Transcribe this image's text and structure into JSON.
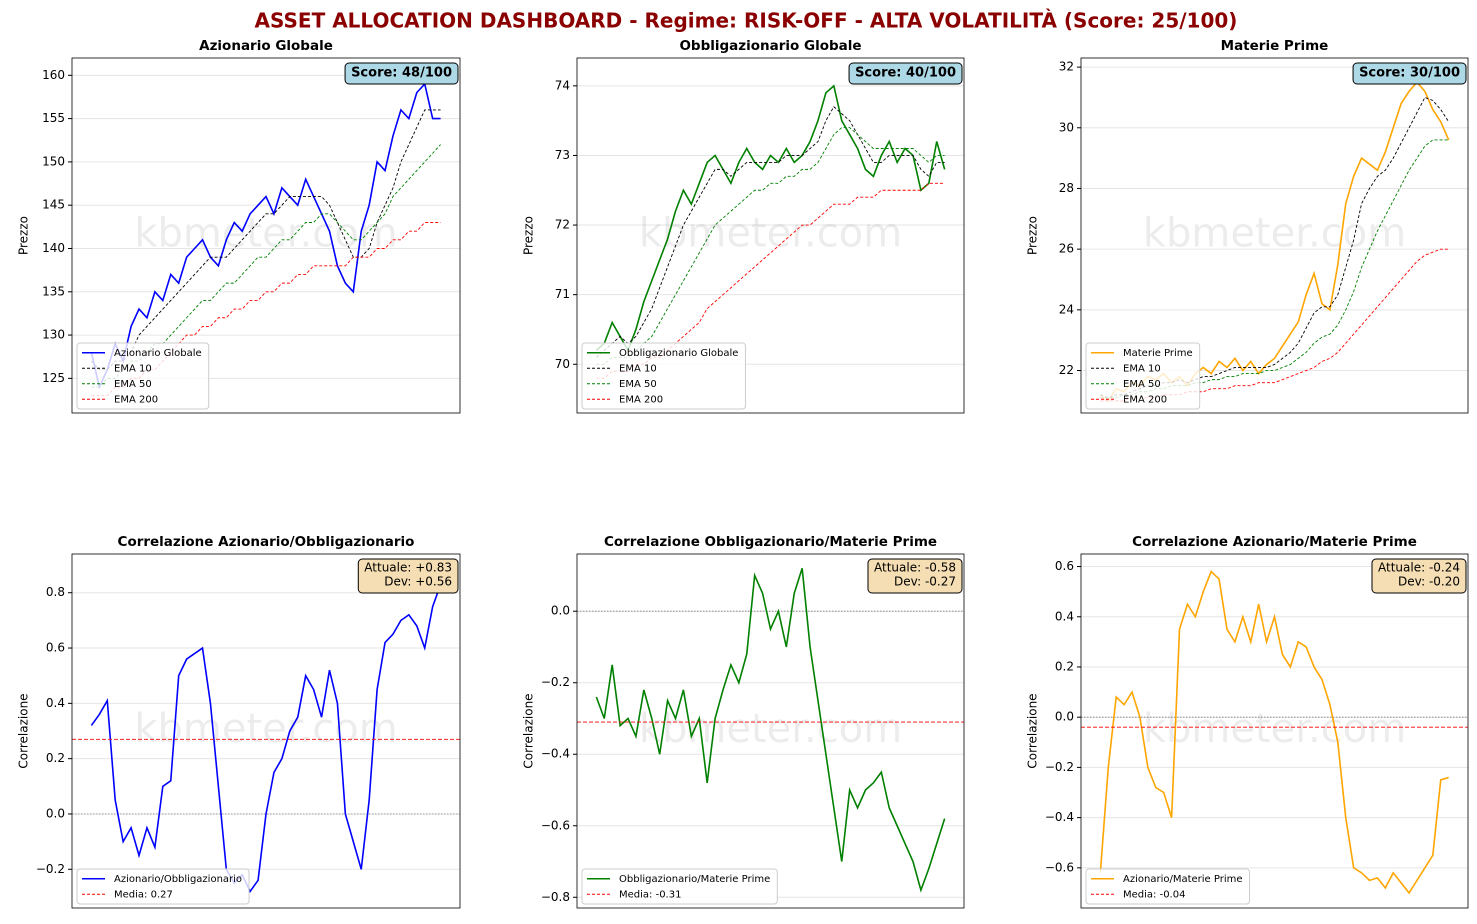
{
  "title": "ASSET ALLOCATION DASHBOARD - Regime: RISK-OFF - ALTA VOLATILITÀ (Score: 25/100)",
  "watermark": "kbmeter.com",
  "chart_data": [
    {
      "type": "line",
      "title": "Azionario Globale",
      "ylabel": "Prezzo",
      "badge": "Score: 48/100",
      "badge_color": "#add8e6",
      "ylim": [
        121,
        162
      ],
      "yticks": [
        125,
        130,
        135,
        140,
        145,
        150,
        155,
        160
      ],
      "grid": true,
      "legend": "lower left",
      "series": [
        {
          "name": "Azionario Globale",
          "color": "#0000ff",
          "dash": false,
          "values": [
            128,
            124,
            126,
            129,
            127,
            131,
            133,
            132,
            135,
            134,
            137,
            136,
            139,
            140,
            141,
            139,
            138,
            141,
            143,
            142,
            144,
            145,
            146,
            144,
            147,
            146,
            145,
            148,
            146,
            144,
            142,
            138,
            136,
            135,
            142,
            145,
            150,
            149,
            153,
            156,
            155,
            158,
            159,
            155,
            155
          ]
        },
        {
          "name": "EMA 10",
          "color": "#000000",
          "dash": true,
          "values": [
            127,
            126,
            126,
            127,
            127,
            128,
            130,
            131,
            132,
            133,
            134,
            135,
            136,
            137,
            138,
            139,
            139,
            139,
            140,
            141,
            142,
            143,
            144,
            144,
            145,
            146,
            146,
            146,
            146,
            146,
            145,
            143,
            141,
            139,
            139,
            140,
            143,
            145,
            147,
            150,
            152,
            154,
            156,
            156,
            156
          ]
        },
        {
          "name": "EMA 50",
          "color": "#008000",
          "dash": true,
          "values": [
            124,
            124,
            125,
            125,
            126,
            127,
            127,
            128,
            129,
            129,
            130,
            131,
            132,
            133,
            134,
            134,
            135,
            136,
            136,
            137,
            138,
            139,
            139,
            140,
            141,
            141,
            142,
            143,
            143,
            144,
            144,
            143,
            142,
            141,
            141,
            142,
            143,
            144,
            146,
            147,
            148,
            149,
            150,
            151,
            152
          ]
        },
        {
          "name": "EMA 200",
          "color": "#ff0000",
          "dash": true,
          "values": [
            123,
            123,
            123,
            124,
            124,
            125,
            125,
            126,
            126,
            127,
            128,
            129,
            130,
            130,
            131,
            131,
            132,
            132,
            133,
            133,
            134,
            134,
            135,
            135,
            136,
            136,
            137,
            137,
            138,
            138,
            138,
            138,
            138,
            139,
            139,
            139,
            140,
            140,
            141,
            141,
            142,
            142,
            143,
            143,
            143
          ]
        }
      ]
    },
    {
      "type": "line",
      "title": "Obbligazionario Globale",
      "ylabel": "Prezzo",
      "badge": "Score: 40/100",
      "badge_color": "#add8e6",
      "ylim": [
        69.3,
        74.4
      ],
      "yticks": [
        70,
        71,
        72,
        73,
        74
      ],
      "grid": true,
      "legend": "lower left",
      "series": [
        {
          "name": "Obbligazionario Globale",
          "color": "#008000",
          "dash": false,
          "values": [
            70.2,
            70.3,
            70.6,
            70.4,
            70.2,
            70.5,
            70.9,
            71.2,
            71.5,
            71.8,
            72.2,
            72.5,
            72.3,
            72.6,
            72.9,
            73.0,
            72.8,
            72.6,
            72.9,
            73.1,
            72.9,
            72.8,
            73.0,
            72.9,
            73.1,
            72.9,
            73.0,
            73.2,
            73.5,
            73.9,
            74.0,
            73.5,
            73.3,
            73.1,
            72.8,
            72.7,
            73.0,
            73.2,
            72.9,
            73.1,
            73.0,
            72.5,
            72.6,
            73.2,
            72.8
          ]
        },
        {
          "name": "EMA 10",
          "color": "#000000",
          "dash": true,
          "values": [
            70.1,
            70.2,
            70.3,
            70.4,
            70.3,
            70.4,
            70.6,
            70.8,
            71.1,
            71.4,
            71.7,
            72.0,
            72.2,
            72.4,
            72.6,
            72.8,
            72.8,
            72.7,
            72.8,
            72.9,
            72.9,
            72.9,
            72.9,
            72.9,
            73.0,
            73.0,
            73.0,
            73.1,
            73.2,
            73.5,
            73.7,
            73.6,
            73.5,
            73.3,
            73.1,
            72.9,
            72.9,
            73.0,
            73.0,
            73.0,
            73.0,
            72.8,
            72.7,
            72.9,
            72.9
          ]
        },
        {
          "name": "EMA 50",
          "color": "#008000",
          "dash": true,
          "values": [
            70.0,
            70.0,
            70.1,
            70.1,
            70.1,
            70.2,
            70.3,
            70.4,
            70.6,
            70.8,
            71.0,
            71.2,
            71.4,
            71.6,
            71.8,
            72.0,
            72.1,
            72.2,
            72.3,
            72.4,
            72.5,
            72.5,
            72.6,
            72.6,
            72.7,
            72.7,
            72.8,
            72.8,
            72.9,
            73.1,
            73.3,
            73.4,
            73.4,
            73.3,
            73.2,
            73.1,
            73.1,
            73.1,
            73.1,
            73.1,
            73.1,
            73.0,
            72.9,
            73.0,
            73.0
          ]
        },
        {
          "name": "EMA 200",
          "color": "#ff0000",
          "dash": true,
          "values": [
            69.8,
            69.8,
            69.9,
            69.9,
            69.9,
            70.0,
            70.0,
            70.1,
            70.1,
            70.2,
            70.3,
            70.4,
            70.5,
            70.6,
            70.8,
            70.9,
            71.0,
            71.1,
            71.2,
            71.3,
            71.4,
            71.5,
            71.6,
            71.7,
            71.8,
            71.9,
            72.0,
            72.0,
            72.1,
            72.2,
            72.3,
            72.3,
            72.3,
            72.4,
            72.4,
            72.4,
            72.5,
            72.5,
            72.5,
            72.5,
            72.5,
            72.5,
            72.6,
            72.6,
            72.6
          ]
        }
      ]
    },
    {
      "type": "line",
      "title": "Materie Prime",
      "ylabel": "Prezzo",
      "badge": "Score: 30/100",
      "badge_color": "#add8e6",
      "ylim": [
        20.6,
        32.3
      ],
      "yticks": [
        22,
        24,
        26,
        28,
        30,
        32
      ],
      "grid": true,
      "legend": "lower left",
      "series": [
        {
          "name": "Materie Prime",
          "color": "#ffa500",
          "dash": false,
          "values": [
            21.2,
            21.0,
            21.4,
            21.3,
            21.6,
            21.5,
            21.8,
            21.7,
            21.9,
            21.6,
            21.8,
            21.5,
            21.9,
            22.1,
            21.9,
            22.3,
            22.1,
            22.4,
            22.0,
            22.3,
            21.9,
            22.2,
            22.4,
            22.8,
            23.2,
            23.6,
            24.5,
            25.2,
            24.2,
            24.0,
            25.5,
            27.5,
            28.4,
            29.0,
            28.8,
            28.6,
            29.2,
            30.0,
            30.8,
            31.2,
            31.5,
            31.2,
            30.6,
            30.2,
            29.6
          ]
        },
        {
          "name": "EMA 10",
          "color": "#000000",
          "dash": true,
          "values": [
            21.2,
            21.1,
            21.2,
            21.2,
            21.3,
            21.4,
            21.5,
            21.5,
            21.6,
            21.6,
            21.7,
            21.6,
            21.7,
            21.8,
            21.8,
            21.9,
            22.0,
            22.1,
            22.1,
            22.1,
            22.1,
            22.1,
            22.2,
            22.4,
            22.6,
            22.9,
            23.4,
            23.9,
            24.1,
            24.1,
            24.5,
            25.4,
            26.3,
            27.5,
            28.0,
            28.4,
            28.6,
            29.0,
            29.5,
            30.0,
            30.5,
            31.0,
            30.9,
            30.6,
            30.2
          ]
        },
        {
          "name": "EMA 50",
          "color": "#008000",
          "dash": true,
          "values": [
            21.1,
            21.1,
            21.1,
            21.2,
            21.2,
            21.3,
            21.3,
            21.4,
            21.4,
            21.5,
            21.5,
            21.5,
            21.6,
            21.6,
            21.7,
            21.7,
            21.8,
            21.8,
            21.9,
            21.9,
            21.9,
            22.0,
            22.0,
            22.1,
            22.2,
            22.4,
            22.6,
            22.9,
            23.1,
            23.2,
            23.5,
            24.0,
            24.6,
            25.4,
            26.0,
            26.6,
            27.1,
            27.6,
            28.1,
            28.6,
            29.0,
            29.4,
            29.6,
            29.6,
            29.6
          ]
        },
        {
          "name": "EMA 200",
          "color": "#ff0000",
          "dash": true,
          "values": [
            21.0,
            21.0,
            21.0,
            21.0,
            21.1,
            21.1,
            21.1,
            21.1,
            21.2,
            21.2,
            21.2,
            21.3,
            21.3,
            21.3,
            21.4,
            21.4,
            21.4,
            21.5,
            21.5,
            21.5,
            21.6,
            21.6,
            21.6,
            21.7,
            21.8,
            21.9,
            22.0,
            22.1,
            22.3,
            22.4,
            22.6,
            22.9,
            23.2,
            23.5,
            23.8,
            24.1,
            24.4,
            24.7,
            25.0,
            25.3,
            25.6,
            25.8,
            25.9,
            26.0,
            26.0
          ]
        }
      ]
    },
    {
      "type": "line",
      "title": "Correlazione Azionario/Obbligazionario",
      "ylabel": "Correlazione",
      "annotation": [
        "Attuale: +0.83",
        "Dev: +0.56"
      ],
      "badge_color": "#f5deb3",
      "ylim": [
        -0.34,
        0.94
      ],
      "yticks": [
        {
          "value": -0.2,
          "label": "−0.2"
        },
        {
          "value": 0,
          "label": "0.0"
        },
        0.2,
        0.4,
        0.6,
        0.8
      ],
      "grid": true,
      "zero_line": true,
      "legend": "lower left",
      "series": [
        {
          "name": "Azionario/Obbligazionario",
          "color": "#0000ff",
          "dash": false,
          "values": [
            0.32,
            0.36,
            0.41,
            0.05,
            -0.1,
            -0.05,
            -0.15,
            -0.05,
            -0.12,
            0.1,
            0.12,
            0.5,
            0.56,
            0.58,
            0.6,
            0.4,
            0.1,
            -0.2,
            -0.25,
            -0.22,
            -0.28,
            -0.24,
            0.0,
            0.15,
            0.2,
            0.3,
            0.35,
            0.5,
            0.45,
            0.35,
            0.52,
            0.4,
            0.0,
            -0.1,
            -0.2,
            0.05,
            0.45,
            0.62,
            0.65,
            0.7,
            0.72,
            0.68,
            0.6,
            0.75,
            0.83
          ]
        },
        {
          "name": "Media: 0.27",
          "color": "#ff0000",
          "dash": true,
          "hline": 0.27
        }
      ]
    },
    {
      "type": "line",
      "title": "Correlazione Obbligazionario/Materie Prime",
      "ylabel": "Correlazione",
      "annotation": [
        "Attuale: -0.58",
        "Dev: -0.27"
      ],
      "badge_color": "#f5deb3",
      "ylim": [
        -0.83,
        0.16
      ],
      "yticks": [
        {
          "value": -0.8,
          "label": "−0.8"
        },
        {
          "value": -0.6,
          "label": "−0.6"
        },
        {
          "value": -0.4,
          "label": "−0.4"
        },
        {
          "value": -0.2,
          "label": "−0.2"
        },
        {
          "value": 0,
          "label": "0.0"
        }
      ],
      "grid": true,
      "zero_line": true,
      "legend": "lower left",
      "series": [
        {
          "name": "Obbligazionario/Materie Prime",
          "color": "#008000",
          "dash": false,
          "values": [
            -0.24,
            -0.3,
            -0.15,
            -0.32,
            -0.3,
            -0.35,
            -0.22,
            -0.3,
            -0.4,
            -0.25,
            -0.3,
            -0.22,
            -0.35,
            -0.3,
            -0.48,
            -0.3,
            -0.22,
            -0.15,
            -0.2,
            -0.12,
            0.1,
            0.05,
            -0.05,
            0.0,
            -0.1,
            0.05,
            0.12,
            -0.1,
            -0.25,
            -0.4,
            -0.55,
            -0.7,
            -0.5,
            -0.55,
            -0.5,
            -0.48,
            -0.45,
            -0.55,
            -0.6,
            -0.65,
            -0.7,
            -0.78,
            -0.72,
            -0.65,
            -0.58
          ]
        },
        {
          "name": "Media: -0.31",
          "color": "#ff0000",
          "dash": true,
          "hline": -0.31
        }
      ]
    },
    {
      "type": "line",
      "title": "Correlazione Azionario/Materie Prime",
      "ylabel": "Correlazione",
      "annotation": [
        "Attuale: -0.24",
        "Dev: -0.20"
      ],
      "badge_color": "#f5deb3",
      "ylim": [
        -0.76,
        0.65
      ],
      "yticks": [
        {
          "value": -0.6,
          "label": "−0.6"
        },
        {
          "value": -0.4,
          "label": "−0.4"
        },
        {
          "value": -0.2,
          "label": "−0.2"
        },
        {
          "value": 0,
          "label": "0.0"
        },
        0.2,
        0.4,
        0.6
      ],
      "grid": true,
      "zero_line": true,
      "legend": "lower left",
      "series": [
        {
          "name": "Azionario/Materie Prime",
          "color": "#ffa500",
          "dash": false,
          "values": [
            -0.62,
            -0.2,
            0.08,
            0.05,
            0.1,
            0.0,
            -0.2,
            -0.28,
            -0.3,
            -0.4,
            0.35,
            0.45,
            0.4,
            0.5,
            0.58,
            0.55,
            0.35,
            0.3,
            0.4,
            0.3,
            0.45,
            0.3,
            0.4,
            0.25,
            0.2,
            0.3,
            0.28,
            0.2,
            0.15,
            0.05,
            -0.1,
            -0.4,
            -0.6,
            -0.62,
            -0.65,
            -0.64,
            -0.68,
            -0.62,
            -0.66,
            -0.7,
            -0.65,
            -0.6,
            -0.55,
            -0.25,
            -0.24
          ]
        },
        {
          "name": "Media: -0.04",
          "color": "#ff0000",
          "dash": true,
          "hline": -0.04
        }
      ]
    }
  ]
}
